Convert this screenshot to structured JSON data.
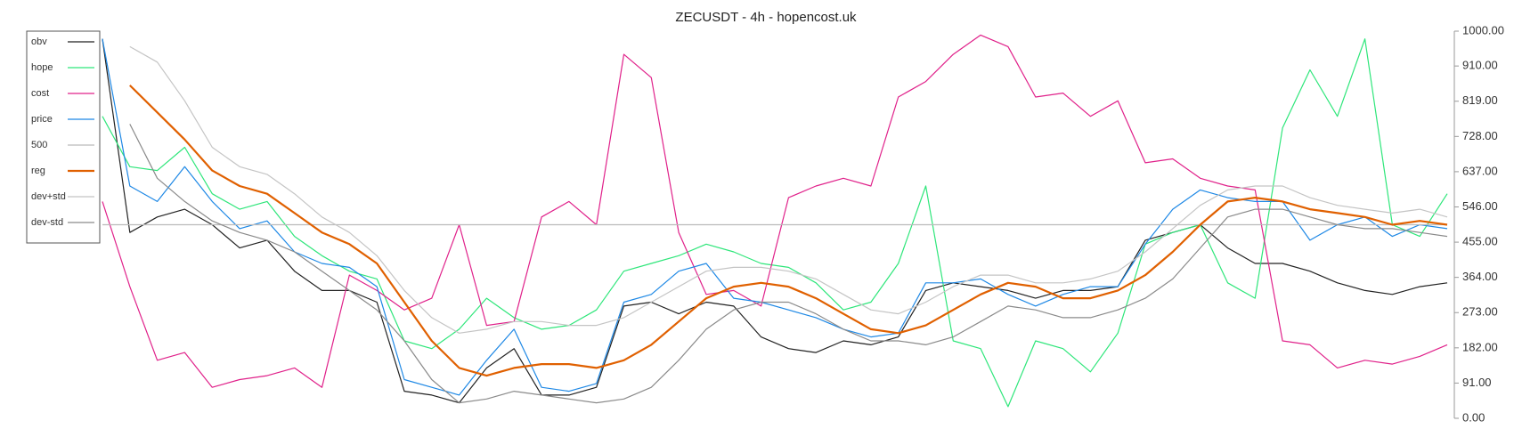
{
  "chart_data": {
    "type": "line",
    "title": "ZECUSDT - 4h - hopencost.uk",
    "ylim": [
      0,
      1000
    ],
    "yticks": [
      {
        "value": 0,
        "label": "0.00"
      },
      {
        "value": 91,
        "label": "91.00"
      },
      {
        "value": 182,
        "label": "182.00"
      },
      {
        "value": 273,
        "label": "273.00"
      },
      {
        "value": 364,
        "label": "364.00"
      },
      {
        "value": 455,
        "label": "455.00"
      },
      {
        "value": 546,
        "label": "546.00"
      },
      {
        "value": 637,
        "label": "637.00"
      },
      {
        "value": 728,
        "label": "728.00"
      },
      {
        "value": 819,
        "label": "819.00"
      },
      {
        "value": 910,
        "label": "910.00"
      },
      {
        "value": 1000,
        "label": "1000.00"
      }
    ],
    "y_axis_side": "right",
    "legend": "upper left",
    "grid": false,
    "series": [
      {
        "name": "obv",
        "color": "#222222",
        "width": 1.2,
        "values": [
          980,
          480,
          520,
          540,
          500,
          440,
          460,
          380,
          330,
          330,
          300,
          70,
          60,
          40,
          130,
          180,
          60,
          60,
          80,
          290,
          300,
          270,
          300,
          290,
          210,
          180,
          170,
          200,
          190,
          210,
          330,
          350,
          340,
          330,
          310,
          330,
          330,
          340,
          460,
          480,
          500,
          440,
          400,
          400,
          380,
          350,
          330,
          320,
          340,
          350
        ]
      },
      {
        "name": "hope",
        "color": "#2ee67a",
        "width": 1.2,
        "values": [
          780,
          650,
          640,
          700,
          580,
          540,
          560,
          470,
          420,
          380,
          360,
          200,
          180,
          230,
          310,
          260,
          230,
          240,
          280,
          380,
          400,
          420,
          450,
          430,
          400,
          390,
          350,
          280,
          300,
          400,
          600,
          200,
          180,
          30,
          200,
          180,
          120,
          220,
          450,
          480,
          500,
          350,
          310,
          750,
          900,
          780,
          980,
          500,
          470,
          580
        ]
      },
      {
        "name": "cost",
        "color": "#e0218a",
        "width": 1.2,
        "values": [
          560,
          340,
          150,
          170,
          80,
          100,
          110,
          130,
          80,
          370,
          330,
          280,
          310,
          500,
          240,
          250,
          520,
          560,
          500,
          940,
          880,
          480,
          320,
          330,
          290,
          570,
          600,
          620,
          600,
          830,
          870,
          940,
          990,
          960,
          830,
          840,
          780,
          820,
          660,
          670,
          620,
          600,
          590,
          200,
          190,
          130,
          150,
          140,
          160,
          190
        ]
      },
      {
        "name": "price",
        "color": "#1e88e5",
        "width": 1.2,
        "values": [
          980,
          600,
          560,
          650,
          560,
          490,
          510,
          430,
          400,
          390,
          340,
          100,
          80,
          60,
          150,
          230,
          80,
          70,
          90,
          300,
          320,
          380,
          400,
          310,
          300,
          280,
          260,
          230,
          210,
          220,
          350,
          350,
          360,
          320,
          290,
          320,
          340,
          340,
          450,
          540,
          590,
          570,
          560,
          560,
          460,
          500,
          520,
          470,
          500,
          490
        ]
      },
      {
        "name": "500",
        "color": "#bbbbbb",
        "width": 1.2,
        "values": [
          500,
          500,
          500,
          500,
          500,
          500,
          500,
          500,
          500,
          500,
          500,
          500,
          500,
          500,
          500,
          500,
          500,
          500,
          500,
          500,
          500,
          500,
          500,
          500,
          500,
          500,
          500,
          500,
          500,
          500,
          500,
          500,
          500,
          500,
          500,
          500,
          500,
          500,
          500,
          500,
          500,
          500,
          500,
          500,
          500,
          500,
          500,
          500,
          500,
          500
        ]
      },
      {
        "name": "reg",
        "color": "#e06000",
        "width": 2.2,
        "values": [
          null,
          860,
          790,
          720,
          640,
          600,
          580,
          530,
          480,
          450,
          400,
          300,
          200,
          130,
          110,
          130,
          140,
          140,
          130,
          150,
          190,
          250,
          310,
          340,
          350,
          340,
          310,
          270,
          230,
          220,
          240,
          280,
          320,
          350,
          340,
          310,
          310,
          330,
          370,
          430,
          500,
          560,
          570,
          560,
          540,
          530,
          520,
          500,
          510,
          500
        ]
      },
      {
        "name": "dev+std",
        "color": "#c4c4c4",
        "width": 1.2,
        "values": [
          null,
          960,
          920,
          820,
          700,
          650,
          630,
          580,
          520,
          480,
          420,
          330,
          260,
          220,
          230,
          250,
          250,
          240,
          240,
          260,
          300,
          340,
          380,
          390,
          390,
          380,
          360,
          320,
          280,
          270,
          300,
          340,
          370,
          370,
          350,
          350,
          360,
          380,
          430,
          490,
          550,
          590,
          600,
          600,
          570,
          550,
          540,
          530,
          540,
          520
        ]
      },
      {
        "name": "dev-std",
        "color": "#8a8a8a",
        "width": 1.2,
        "values": [
          null,
          760,
          620,
          560,
          510,
          480,
          460,
          430,
          380,
          330,
          280,
          200,
          100,
          40,
          50,
          70,
          60,
          50,
          40,
          50,
          80,
          150,
          230,
          280,
          300,
          300,
          270,
          230,
          200,
          200,
          190,
          210,
          250,
          290,
          280,
          260,
          260,
          280,
          310,
          360,
          440,
          520,
          540,
          540,
          520,
          500,
          490,
          490,
          480,
          470
        ]
      }
    ]
  }
}
